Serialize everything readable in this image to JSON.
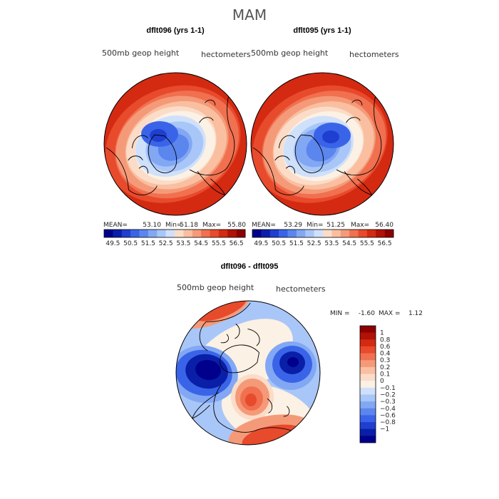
{
  "title": "MAM",
  "colors": {
    "cool": [
      "#00008c",
      "#0a1fa8",
      "#1f3fd0",
      "#3a64e8",
      "#5b86ee",
      "#82a8f4",
      "#a9c6f8",
      "#cfe0fb"
    ],
    "neutral": "#fbf1e4",
    "warm": [
      "#fbdcc8",
      "#f9bfa0",
      "#f59a78",
      "#f07050",
      "#e84a2c",
      "#d42a12",
      "#b01206",
      "#8c0000"
    ],
    "coast": "#000000"
  },
  "chart_data": [
    {
      "type": "heatmap",
      "projection": "north-polar-stereographic",
      "title": "dflt096 (yrs 1-1)",
      "variable": "500mb geop height",
      "units": "hectometers",
      "stats": {
        "mean_label": "MEAN=",
        "mean": "53.10",
        "min_label": "Min=",
        "min": "51.18",
        "max_label": "Max=",
        "max": "55.80"
      },
      "colorbar_ticks": [
        "49.5",
        "50.5",
        "51.5",
        "52.5",
        "53.5",
        "54.5",
        "55.5",
        "56.5"
      ],
      "range": [
        49.5,
        56.5
      ]
    },
    {
      "type": "heatmap",
      "projection": "north-polar-stereographic",
      "title": "dflt095 (yrs 1-1)",
      "variable": "500mb geop height",
      "units": "hectometers",
      "stats": {
        "mean_label": "MEAN=",
        "mean": "53.29",
        "min_label": "Min=",
        "min": "51.25",
        "max_label": "Max=",
        "max": "56.40"
      },
      "colorbar_ticks": [
        "49.5",
        "50.5",
        "51.5",
        "52.5",
        "53.5",
        "54.5",
        "55.5",
        "56.5"
      ],
      "range": [
        49.5,
        56.5
      ]
    },
    {
      "type": "heatmap",
      "projection": "north-polar-stereographic",
      "title": "dflt096 - dflt095",
      "variable": "500mb geop height",
      "units": "hectometers",
      "stats": {
        "min_label": "MIN =",
        "min": "-1.60",
        "max_label": "MAX =",
        "max": "1.12"
      },
      "colorbar_ticks": [
        "1",
        "0.8",
        "0.6",
        "0.4",
        "0.3",
        "0.2",
        "0.1",
        "0",
        "−0.1",
        "−0.2",
        "−0.3",
        "−0.4",
        "−0.6",
        "−0.8",
        "−1"
      ],
      "range": [
        -1,
        1
      ]
    }
  ]
}
